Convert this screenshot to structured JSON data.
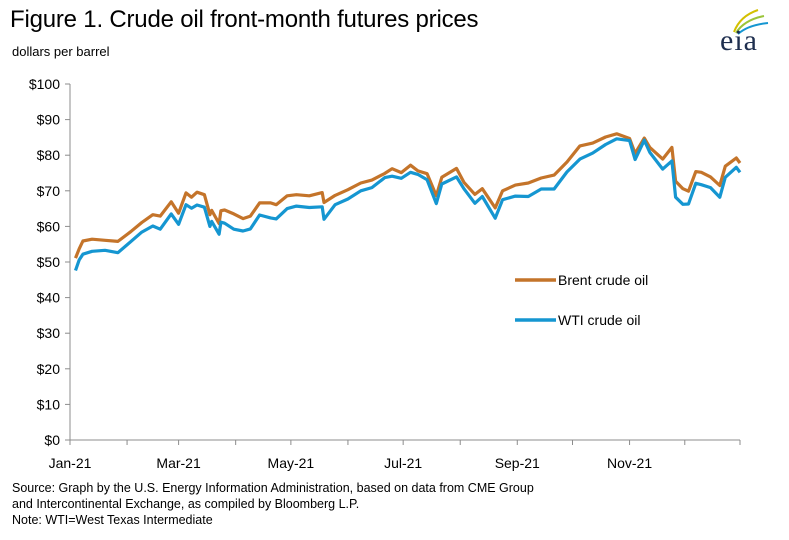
{
  "header": {
    "title": "Figure 1. Crude oil front-month futures prices",
    "subtitle": "dollars per barrel",
    "logo_text": "eia"
  },
  "footer": {
    "source_line1": "Source: Graph by the U.S. Energy Information Administration, based on data from CME Group",
    "source_line2": "and Intercontinental Exchange, as compiled by Bloomberg L.P.",
    "note": "Note: WTI=West Texas Intermediate"
  },
  "colors": {
    "brent": "#c4742a",
    "wti": "#1596d1",
    "axis": "#8c8c8c",
    "logo_blue": "#1f2f4f",
    "logo_accent": "#d4c000"
  },
  "chart_data": {
    "type": "line",
    "title": "Figure 1. Crude oil front-month futures prices",
    "ylabel": "dollars per barrel",
    "xlabel": "",
    "ylim": [
      0,
      100
    ],
    "y_ticks": [
      "$0",
      "$10",
      "$20",
      "$30",
      "$40",
      "$50",
      "$60",
      "$70",
      "$80",
      "$90",
      "$100"
    ],
    "x_range": [
      "2021-01-01",
      "2021-12-31"
    ],
    "x_ticks": [
      {
        "date": "2021-01-01",
        "label": "Jan-21"
      },
      {
        "date": "2021-03-01",
        "label": "Mar-21"
      },
      {
        "date": "2021-05-01",
        "label": "May-21"
      },
      {
        "date": "2021-07-01",
        "label": "Jul-21"
      },
      {
        "date": "2021-09-01",
        "label": "Sep-21"
      },
      {
        "date": "2021-11-01",
        "label": "Nov-21"
      }
    ],
    "grid": false,
    "legend_position": "right-middle",
    "series": [
      {
        "name": "Brent crude oil",
        "color": "#c4742a",
        "points": [
          [
            "2021-01-04",
            51.1
          ],
          [
            "2021-01-06",
            53.7
          ],
          [
            "2021-01-08",
            55.9
          ],
          [
            "2021-01-13",
            56.4
          ],
          [
            "2021-01-20",
            56.1
          ],
          [
            "2021-01-27",
            55.8
          ],
          [
            "2021-02-03",
            58.5
          ],
          [
            "2021-02-09",
            61.1
          ],
          [
            "2021-02-15",
            63.3
          ],
          [
            "2021-02-19",
            62.9
          ],
          [
            "2021-02-25",
            66.9
          ],
          [
            "2021-03-01",
            63.7
          ],
          [
            "2021-03-05",
            69.4
          ],
          [
            "2021-03-08",
            68.2
          ],
          [
            "2021-03-11",
            69.6
          ],
          [
            "2021-03-15",
            68.9
          ],
          [
            "2021-03-18",
            63.3
          ],
          [
            "2021-03-19",
            64.5
          ],
          [
            "2021-03-23",
            60.8
          ],
          [
            "2021-03-24",
            64.4
          ],
          [
            "2021-03-26",
            64.6
          ],
          [
            "2021-03-31",
            63.5
          ],
          [
            "2021-04-05",
            62.2
          ],
          [
            "2021-04-09",
            62.9
          ],
          [
            "2021-04-14",
            66.6
          ],
          [
            "2021-04-20",
            66.6
          ],
          [
            "2021-04-23",
            66.1
          ],
          [
            "2021-04-29",
            68.6
          ],
          [
            "2021-05-04",
            68.9
          ],
          [
            "2021-05-11",
            68.6
          ],
          [
            "2021-05-18",
            69.5
          ],
          [
            "2021-05-19",
            66.7
          ],
          [
            "2021-05-25",
            68.7
          ],
          [
            "2021-06-01",
            70.3
          ],
          [
            "2021-06-08",
            72.2
          ],
          [
            "2021-06-14",
            73.0
          ],
          [
            "2021-06-21",
            74.9
          ],
          [
            "2021-06-25",
            76.2
          ],
          [
            "2021-06-30",
            75.1
          ],
          [
            "2021-07-05",
            77.2
          ],
          [
            "2021-07-09",
            75.6
          ],
          [
            "2021-07-14",
            74.8
          ],
          [
            "2021-07-19",
            68.6
          ],
          [
            "2021-07-22",
            73.8
          ],
          [
            "2021-07-30",
            76.3
          ],
          [
            "2021-08-03",
            72.4
          ],
          [
            "2021-08-09",
            69.0
          ],
          [
            "2021-08-13",
            70.6
          ],
          [
            "2021-08-20",
            65.2
          ],
          [
            "2021-08-24",
            70.0
          ],
          [
            "2021-08-31",
            71.6
          ],
          [
            "2021-09-07",
            72.2
          ],
          [
            "2021-09-14",
            73.6
          ],
          [
            "2021-09-21",
            74.4
          ],
          [
            "2021-09-28",
            78.1
          ],
          [
            "2021-10-05",
            82.6
          ],
          [
            "2021-10-12",
            83.4
          ],
          [
            "2021-10-19",
            85.1
          ],
          [
            "2021-10-25",
            86.0
          ],
          [
            "2021-11-01",
            84.7
          ],
          [
            "2021-11-04",
            80.5
          ],
          [
            "2021-11-09",
            84.8
          ],
          [
            "2021-11-12",
            82.2
          ],
          [
            "2021-11-19",
            78.9
          ],
          [
            "2021-11-24",
            82.2
          ],
          [
            "2021-11-26",
            72.7
          ],
          [
            "2021-11-30",
            70.6
          ],
          [
            "2021-12-03",
            69.9
          ],
          [
            "2021-12-07",
            75.4
          ],
          [
            "2021-12-10",
            75.2
          ],
          [
            "2021-12-15",
            73.9
          ],
          [
            "2021-12-20",
            71.5
          ],
          [
            "2021-12-23",
            76.9
          ],
          [
            "2021-12-29",
            79.2
          ],
          [
            "2021-12-31",
            77.8
          ]
        ]
      },
      {
        "name": "WTI crude oil",
        "color": "#1596d1",
        "points": [
          [
            "2021-01-04",
            47.6
          ],
          [
            "2021-01-06",
            50.6
          ],
          [
            "2021-01-08",
            52.2
          ],
          [
            "2021-01-13",
            53.0
          ],
          [
            "2021-01-20",
            53.3
          ],
          [
            "2021-01-27",
            52.6
          ],
          [
            "2021-02-03",
            55.7
          ],
          [
            "2021-02-09",
            58.4
          ],
          [
            "2021-02-15",
            60.1
          ],
          [
            "2021-02-19",
            59.2
          ],
          [
            "2021-02-25",
            63.5
          ],
          [
            "2021-03-01",
            60.6
          ],
          [
            "2021-03-05",
            66.1
          ],
          [
            "2021-03-08",
            65.1
          ],
          [
            "2021-03-11",
            66.0
          ],
          [
            "2021-03-15",
            65.4
          ],
          [
            "2021-03-18",
            60.0
          ],
          [
            "2021-03-19",
            61.4
          ],
          [
            "2021-03-23",
            57.8
          ],
          [
            "2021-03-24",
            61.2
          ],
          [
            "2021-03-26",
            60.9
          ],
          [
            "2021-03-31",
            59.2
          ],
          [
            "2021-04-05",
            58.7
          ],
          [
            "2021-04-09",
            59.3
          ],
          [
            "2021-04-14",
            63.2
          ],
          [
            "2021-04-20",
            62.4
          ],
          [
            "2021-04-23",
            62.1
          ],
          [
            "2021-04-29",
            65.0
          ],
          [
            "2021-05-04",
            65.7
          ],
          [
            "2021-05-11",
            65.3
          ],
          [
            "2021-05-18",
            65.5
          ],
          [
            "2021-05-19",
            62.0
          ],
          [
            "2021-05-25",
            66.1
          ],
          [
            "2021-06-01",
            67.7
          ],
          [
            "2021-06-08",
            70.0
          ],
          [
            "2021-06-14",
            70.9
          ],
          [
            "2021-06-21",
            73.7
          ],
          [
            "2021-06-25",
            74.1
          ],
          [
            "2021-06-30",
            73.5
          ],
          [
            "2021-07-05",
            75.2
          ],
          [
            "2021-07-09",
            74.6
          ],
          [
            "2021-07-14",
            73.1
          ],
          [
            "2021-07-19",
            66.4
          ],
          [
            "2021-07-22",
            71.9
          ],
          [
            "2021-07-30",
            73.9
          ],
          [
            "2021-08-03",
            70.6
          ],
          [
            "2021-08-09",
            66.5
          ],
          [
            "2021-08-13",
            68.4
          ],
          [
            "2021-08-20",
            62.3
          ],
          [
            "2021-08-24",
            67.5
          ],
          [
            "2021-08-31",
            68.5
          ],
          [
            "2021-09-07",
            68.4
          ],
          [
            "2021-09-14",
            70.5
          ],
          [
            "2021-09-21",
            70.5
          ],
          [
            "2021-09-28",
            75.3
          ],
          [
            "2021-10-05",
            78.9
          ],
          [
            "2021-10-12",
            80.6
          ],
          [
            "2021-10-19",
            83.0
          ],
          [
            "2021-10-25",
            84.6
          ],
          [
            "2021-11-01",
            84.1
          ],
          [
            "2021-11-04",
            78.8
          ],
          [
            "2021-11-09",
            84.2
          ],
          [
            "2021-11-12",
            80.8
          ],
          [
            "2021-11-19",
            76.1
          ],
          [
            "2021-11-24",
            78.4
          ],
          [
            "2021-11-26",
            68.2
          ],
          [
            "2021-11-30",
            66.2
          ],
          [
            "2021-12-03",
            66.3
          ],
          [
            "2021-12-07",
            72.1
          ],
          [
            "2021-12-10",
            71.7
          ],
          [
            "2021-12-15",
            70.9
          ],
          [
            "2021-12-20",
            68.2
          ],
          [
            "2021-12-23",
            73.8
          ],
          [
            "2021-12-29",
            76.6
          ],
          [
            "2021-12-31",
            75.2
          ]
        ]
      }
    ]
  }
}
